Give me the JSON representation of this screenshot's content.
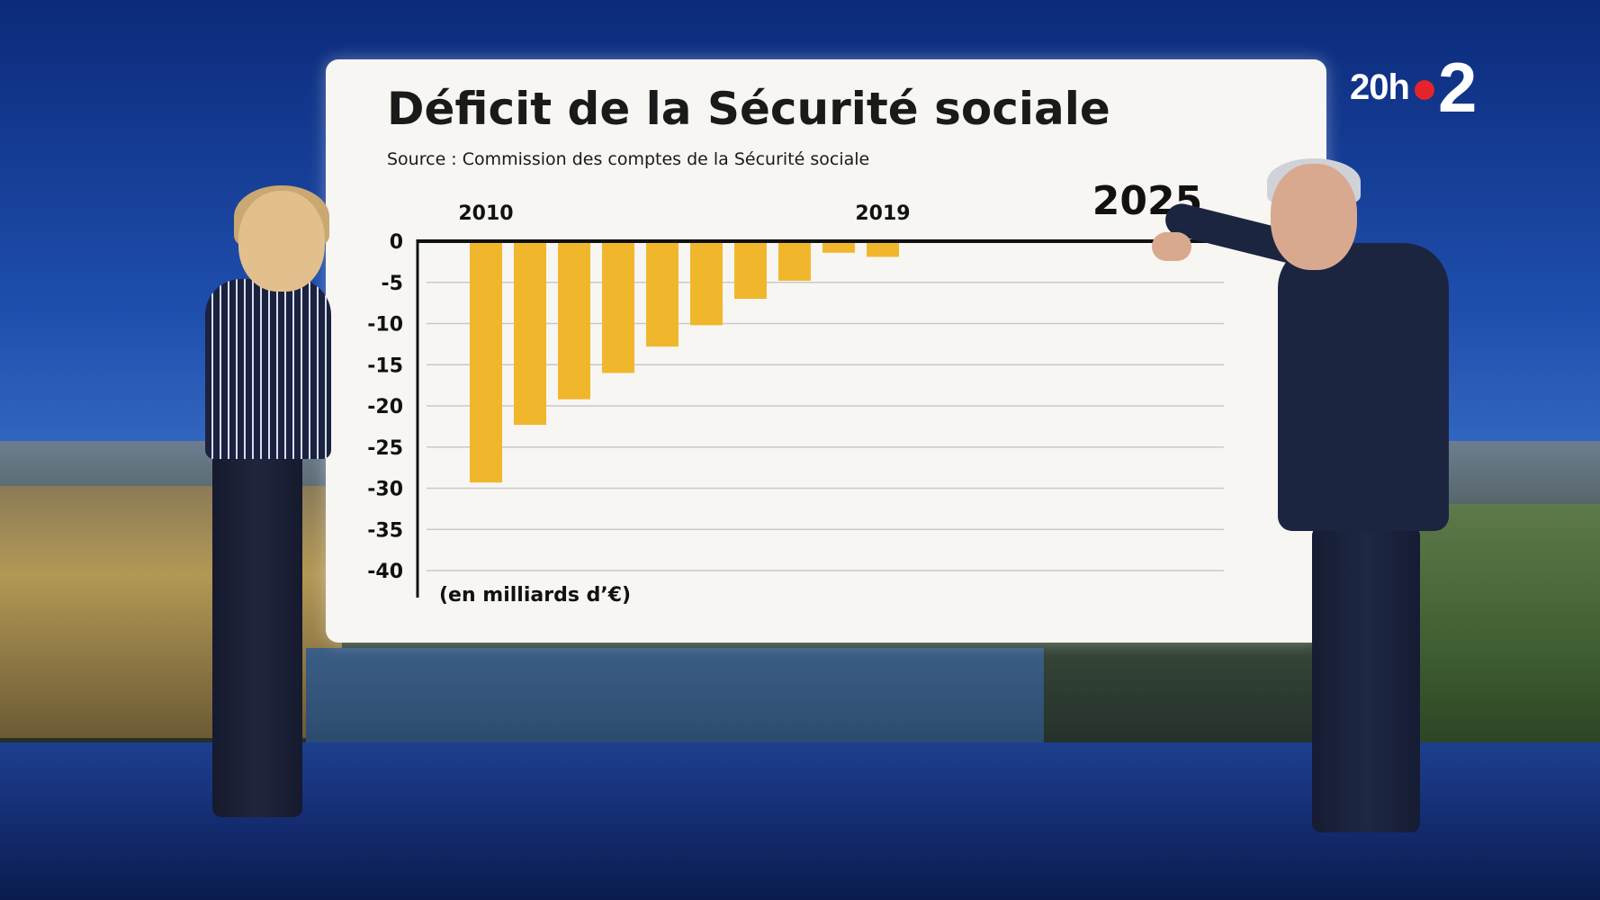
{
  "broadcast": {
    "logo_time": "20h",
    "logo_channel": "2"
  },
  "chart_data": {
    "type": "bar",
    "title": "Déficit de la Sécurité sociale",
    "subtitle": "Source : Commission des comptes de la Sécurité sociale",
    "unit_label": "(en milliards d’€)",
    "ylim": [
      -40,
      0
    ],
    "y_ticks": [
      0,
      -5,
      -10,
      -15,
      -20,
      -25,
      -30,
      -35,
      -40
    ],
    "grid": true,
    "categories": [
      "2010",
      "2011",
      "2012",
      "2013",
      "2014",
      "2015",
      "2016",
      "2017",
      "2018",
      "2019"
    ],
    "values": [
      -29.3,
      -22.3,
      -19.2,
      -16.0,
      -12.8,
      -10.2,
      -7.0,
      -4.8,
      -1.4,
      -1.9
    ],
    "x_labels": [
      {
        "label": "2010",
        "category_index": 0
      },
      {
        "label": "2019",
        "category_index": 9
      },
      {
        "label": "2025",
        "category_index": 15
      }
    ],
    "bar_color": "#f1b72c"
  }
}
